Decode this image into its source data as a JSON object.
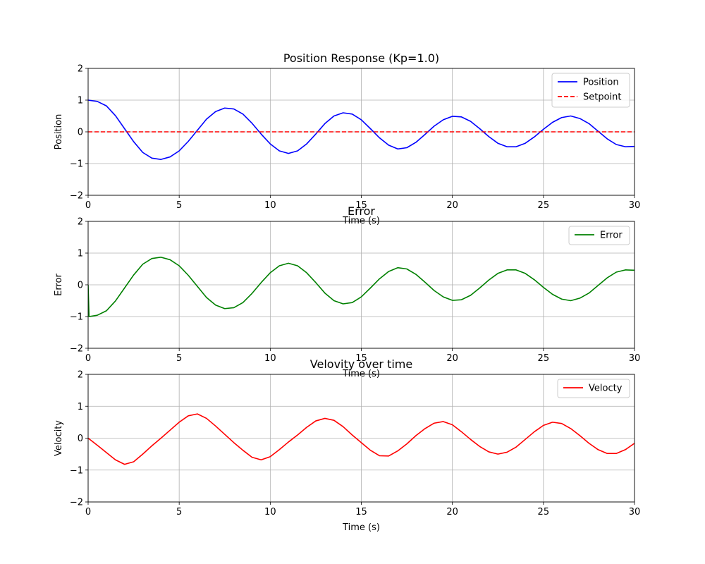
{
  "chart_data": [
    {
      "type": "line",
      "title": "Position Response (Kp=1.0)",
      "xlabel": "Time (s)",
      "ylabel": "Position",
      "xlim": [
        0,
        30
      ],
      "ylim": [
        -2,
        2
      ],
      "xticks": [
        0,
        5,
        10,
        15,
        20,
        25,
        30
      ],
      "yticks": [
        -2,
        -1,
        0,
        1,
        2
      ],
      "ytick_labels": [
        "−2",
        "−1",
        "0",
        "1",
        "2"
      ],
      "grid": true,
      "legend": "top-right",
      "series": [
        {
          "name": "Position",
          "color": "#0000ff",
          "style": "solid",
          "x": [
            0,
            0.5,
            1,
            1.5,
            2,
            2.5,
            3,
            3.5,
            4,
            4.5,
            5,
            5.5,
            6,
            6.5,
            7,
            7.5,
            8,
            8.5,
            9,
            9.5,
            10,
            10.5,
            11,
            11.5,
            12,
            12.5,
            13,
            13.5,
            14,
            14.5,
            15,
            15.5,
            16,
            16.5,
            17,
            17.5,
            18,
            18.5,
            19,
            19.5,
            20,
            20.5,
            21,
            21.5,
            22,
            22.5,
            23,
            23.5,
            24,
            24.5,
            25,
            25.5,
            26,
            26.5,
            27,
            27.5,
            28,
            28.5,
            29,
            29.5,
            30
          ],
          "y": [
            1.0,
            0.96,
            0.82,
            0.51,
            0.1,
            -0.31,
            -0.65,
            -0.83,
            -0.87,
            -0.79,
            -0.6,
            -0.3,
            0.05,
            0.4,
            0.64,
            0.75,
            0.72,
            0.56,
            0.27,
            -0.07,
            -0.38,
            -0.6,
            -0.68,
            -0.6,
            -0.38,
            -0.07,
            0.26,
            0.5,
            0.6,
            0.56,
            0.38,
            0.1,
            -0.19,
            -0.42,
            -0.54,
            -0.5,
            -0.33,
            -0.08,
            0.18,
            0.38,
            0.49,
            0.47,
            0.33,
            0.1,
            -0.15,
            -0.36,
            -0.47,
            -0.47,
            -0.36,
            -0.16,
            0.08,
            0.3,
            0.45,
            0.5,
            0.42,
            0.26,
            0.02,
            -0.22,
            -0.4,
            -0.47,
            -0.46
          ]
        },
        {
          "name": "Setpoint",
          "color": "#ff0000",
          "style": "dashed",
          "x": [
            0,
            30
          ],
          "y": [
            0,
            0
          ]
        }
      ]
    },
    {
      "type": "line",
      "title": "Error",
      "xlabel": "Time (s)",
      "ylabel": "Error",
      "xlim": [
        0,
        30
      ],
      "ylim": [
        -2,
        2
      ],
      "xticks": [
        0,
        5,
        10,
        15,
        20,
        25,
        30
      ],
      "yticks": [
        -2,
        -1,
        0,
        1,
        2
      ],
      "ytick_labels": [
        "−2",
        "−1",
        "0",
        "1",
        "2"
      ],
      "grid": true,
      "legend": "top-right",
      "series": [
        {
          "name": "Error",
          "color": "#008000",
          "style": "solid",
          "x": [
            0,
            0.05,
            0.5,
            1,
            1.5,
            2,
            2.5,
            3,
            3.5,
            4,
            4.5,
            5,
            5.5,
            6,
            6.5,
            7,
            7.5,
            8,
            8.5,
            9,
            9.5,
            10,
            10.5,
            11,
            11.5,
            12,
            12.5,
            13,
            13.5,
            14,
            14.5,
            15,
            15.5,
            16,
            16.5,
            17,
            17.5,
            18,
            18.5,
            19,
            19.5,
            20,
            20.5,
            21,
            21.5,
            22,
            22.5,
            23,
            23.5,
            24,
            24.5,
            25,
            25.5,
            26,
            26.5,
            27,
            27.5,
            28,
            28.5,
            29,
            29.5,
            30
          ],
          "y": [
            0,
            -1.0,
            -0.96,
            -0.82,
            -0.51,
            -0.1,
            0.31,
            0.65,
            0.83,
            0.87,
            0.79,
            0.6,
            0.3,
            -0.05,
            -0.4,
            -0.64,
            -0.75,
            -0.72,
            -0.56,
            -0.27,
            0.07,
            0.38,
            0.6,
            0.68,
            0.6,
            0.38,
            0.07,
            -0.26,
            -0.5,
            -0.6,
            -0.56,
            -0.38,
            -0.1,
            0.19,
            0.42,
            0.54,
            0.5,
            0.33,
            0.08,
            -0.18,
            -0.38,
            -0.49,
            -0.47,
            -0.33,
            -0.1,
            0.15,
            0.36,
            0.47,
            0.47,
            0.36,
            0.16,
            -0.08,
            -0.3,
            -0.45,
            -0.5,
            -0.42,
            -0.26,
            -0.02,
            0.22,
            0.4,
            0.47,
            0.46
          ]
        }
      ]
    },
    {
      "type": "line",
      "title": "Velovity over time",
      "xlabel": "Time (s)",
      "ylabel": "Velocity",
      "xlim": [
        0,
        30
      ],
      "ylim": [
        -2,
        2
      ],
      "xticks": [
        0,
        5,
        10,
        15,
        20,
        25,
        30
      ],
      "yticks": [
        -2,
        -1,
        0,
        1,
        2
      ],
      "ytick_labels": [
        "−2",
        "−1",
        "0",
        "1",
        "2"
      ],
      "grid": true,
      "legend": "top-right",
      "series": [
        {
          "name": "Velocty",
          "color": "#ff0000",
          "style": "solid",
          "x": [
            0,
            0.5,
            1,
            1.5,
            2,
            2.5,
            3,
            3.5,
            4,
            4.5,
            5,
            5.5,
            6,
            6.5,
            7,
            7.5,
            8,
            8.5,
            9,
            9.5,
            10,
            10.5,
            11,
            11.5,
            12,
            12.5,
            13,
            13.5,
            14,
            14.5,
            15,
            15.5,
            16,
            16.5,
            17,
            17.5,
            18,
            18.5,
            19,
            19.5,
            20,
            20.5,
            21,
            21.5,
            22,
            22.5,
            23,
            23.5,
            24,
            24.5,
            25,
            25.5,
            26,
            26.5,
            27,
            27.5,
            28,
            28.5,
            29,
            29.5,
            30
          ],
          "y": [
            0,
            -0.22,
            -0.45,
            -0.68,
            -0.82,
            -0.74,
            -0.5,
            -0.24,
            0.0,
            0.25,
            0.5,
            0.7,
            0.76,
            0.62,
            0.38,
            0.12,
            -0.14,
            -0.38,
            -0.6,
            -0.68,
            -0.58,
            -0.36,
            -0.12,
            0.1,
            0.34,
            0.54,
            0.62,
            0.56,
            0.36,
            0.1,
            -0.14,
            -0.38,
            -0.55,
            -0.56,
            -0.4,
            -0.18,
            0.08,
            0.3,
            0.47,
            0.52,
            0.42,
            0.2,
            -0.04,
            -0.26,
            -0.43,
            -0.5,
            -0.44,
            -0.28,
            -0.04,
            0.2,
            0.4,
            0.5,
            0.46,
            0.3,
            0.08,
            -0.16,
            -0.36,
            -0.48,
            -0.48,
            -0.36,
            -0.16
          ]
        }
      ]
    }
  ]
}
